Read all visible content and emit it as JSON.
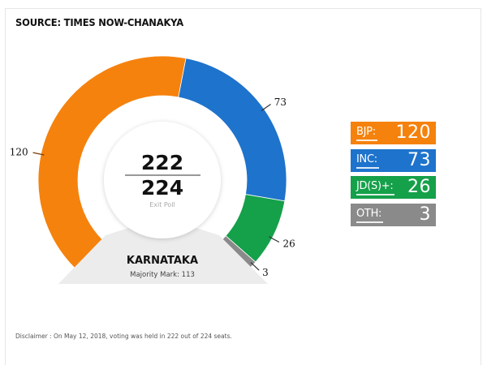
{
  "header": {
    "source": "SOURCE: TIMES NOW-CHANAKYA"
  },
  "center": {
    "numerator": "222",
    "denominator": "224",
    "caption": "Exit Poll"
  },
  "base": {
    "state": "KARNATAKA",
    "majority": "Majority Mark: 113"
  },
  "legend": [
    {
      "label": "BJP:",
      "value": "120",
      "color": "#f5820d"
    },
    {
      "label": "INC:",
      "value": "73",
      "color": "#1e73cc"
    },
    {
      "label": "JD(S)+:",
      "value": "26",
      "color": "#15a04a"
    },
    {
      "label": "OTH:",
      "value": "3",
      "color": "#8a8a8a"
    }
  ],
  "disclaimer": "Disclaimer : On May 12, 2018, voting was held in 222 out of 224 seats.",
  "chart_data": {
    "type": "pie",
    "subtype": "partial-donut",
    "title": "SOURCE: TIMES NOW-CHANAKYA",
    "subtitle": "KARNATAKA — Majority Mark: 113",
    "categories": [
      "BJP",
      "INC",
      "JD(S)+",
      "OTH"
    ],
    "values": [
      120,
      73,
      26,
      3
    ],
    "colors": [
      "#f5820d",
      "#1e73cc",
      "#15a04a",
      "#8a8a8a"
    ],
    "total_shown": 222,
    "total_seats": 224,
    "majority_mark": 113,
    "center_label": "222 / 224 Exit Poll",
    "legend_position": "right",
    "annotations": [
      "120",
      "73",
      "26",
      "3"
    ]
  }
}
